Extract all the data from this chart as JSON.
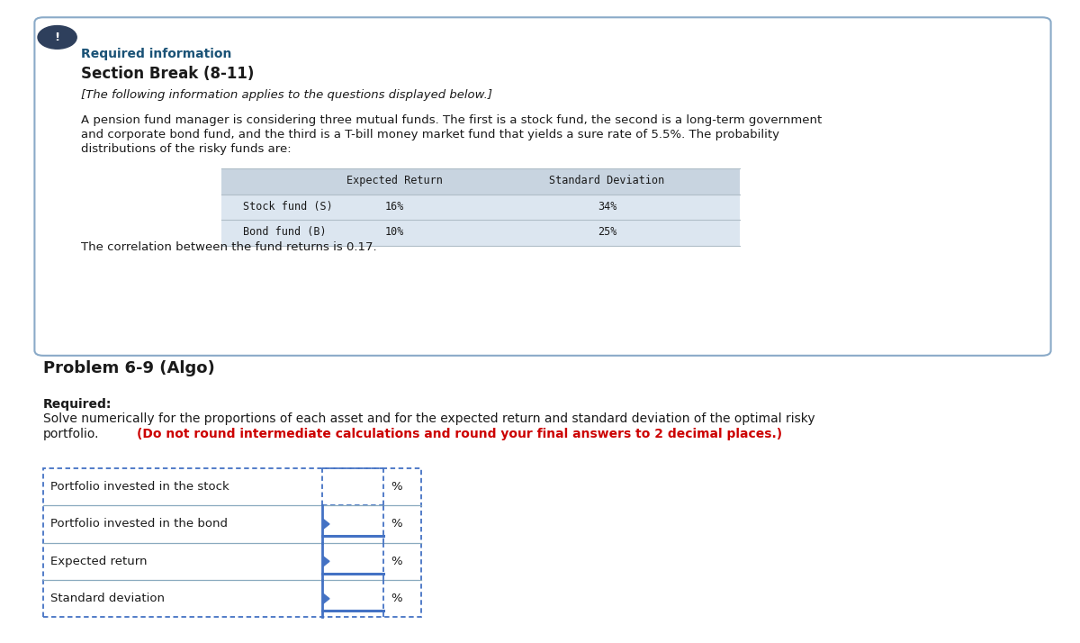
{
  "bg_color": "#ffffff",
  "card_bg": "#ffffff",
  "card_border": "#8aaac8",
  "required_info_color": "#1a5276",
  "section_break_text": "Section Break (8-11)",
  "italic_text": "[The following information applies to the questions displayed below.]",
  "body_text_line1": "A pension fund manager is considering three mutual funds. The first is a stock fund, the second is a long-term government",
  "body_text_line2": "and corporate bond fund, and the third is a T-bill money market fund that yields a sure rate of 5.5%. The probability",
  "body_text_line3": "distributions of the risky funds are:",
  "table_header": [
    "Expected Return",
    "Standard Deviation"
  ],
  "table_rows": [
    [
      "Stock fund (S)",
      "16%",
      "34%"
    ],
    [
      "Bond fund (B)",
      "10%",
      "25%"
    ]
  ],
  "table_header_bg": "#c8d4e0",
  "table_row_bg1": "#dce6f0",
  "table_row_bg2": "#dce6f0",
  "correlation_text": "The correlation between the fund returns is 0.17.",
  "problem_title": "Problem 6-9 (Algo)",
  "required_label": "Required:",
  "required_body_line1": "Solve numerically for the proportions of each asset and for the expected return and standard deviation of the optimal risky",
  "required_body_line2": "portfolio.",
  "red_text": "(Do not round intermediate calculations and round your final answers to 2 decimal places.)",
  "answer_rows": [
    "Portfolio invested in the stock",
    "Portfolio invested in the bond",
    "Expected return",
    "Standard deviation"
  ],
  "percent_sign": "%",
  "icon_bg": "#2e3f5c",
  "dotted_border_color": "#4472c4",
  "solid_border_color": "#4472c4"
}
